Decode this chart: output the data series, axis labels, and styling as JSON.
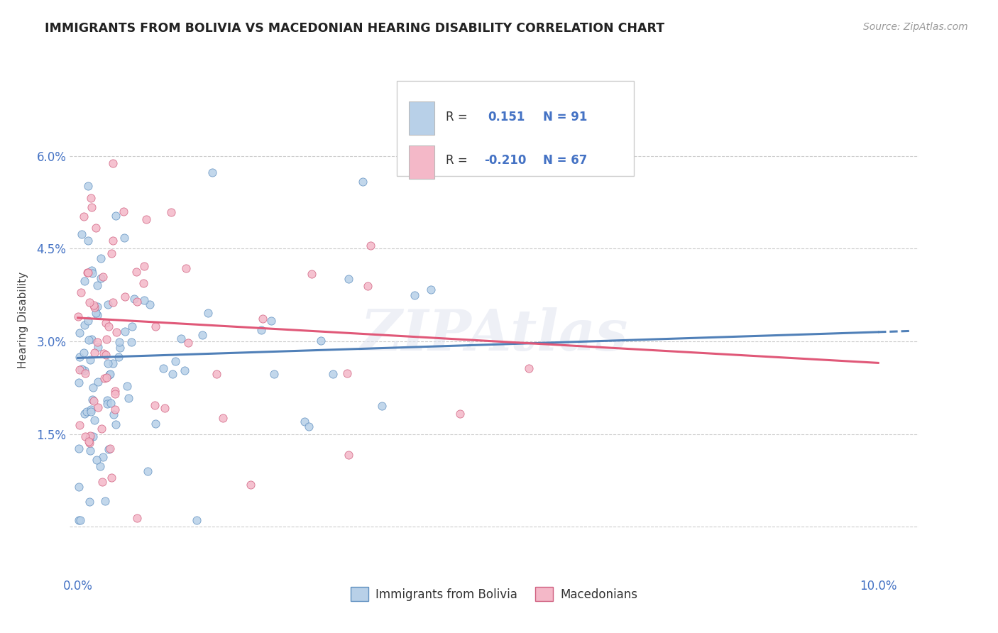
{
  "title": "IMMIGRANTS FROM BOLIVIA VS MACEDONIAN HEARING DISABILITY CORRELATION CHART",
  "source": "Source: ZipAtlas.com",
  "ylabel": "Hearing Disability",
  "xlim": [
    -0.001,
    0.105
  ],
  "ylim": [
    -0.008,
    0.075
  ],
  "x_ticks": [
    0.0,
    0.1
  ],
  "x_tick_labels": [
    "0.0%",
    "10.0%"
  ],
  "y_ticks": [
    0.0,
    0.015,
    0.03,
    0.045,
    0.06
  ],
  "y_tick_labels": [
    "",
    "1.5%",
    "3.0%",
    "4.5%",
    "6.0%"
  ],
  "series1_name": "Immigrants from Bolivia",
  "series1_fill": "#b8d0e8",
  "series1_edge": "#6090c0",
  "series1_line": "#5080b8",
  "series1_R": 0.151,
  "series1_N": 91,
  "series1_trend_start_y": 0.0273,
  "series1_trend_end_y": 0.0315,
  "series2_name": "Macedonians",
  "series2_fill": "#f4b8c8",
  "series2_edge": "#d06080",
  "series2_line": "#e05878",
  "series2_R": -0.21,
  "series2_N": 67,
  "series2_trend_start_y": 0.0338,
  "series2_trend_end_y": 0.0265,
  "title_color": "#222222",
  "axis_color": "#4472c4",
  "watermark": "ZIPAtlas",
  "background_color": "#ffffff",
  "grid_color": "#cccccc",
  "legend_color1": "#b8d0e8",
  "legend_color2": "#f4b8c8",
  "legend_edge": "#bbbbbb"
}
